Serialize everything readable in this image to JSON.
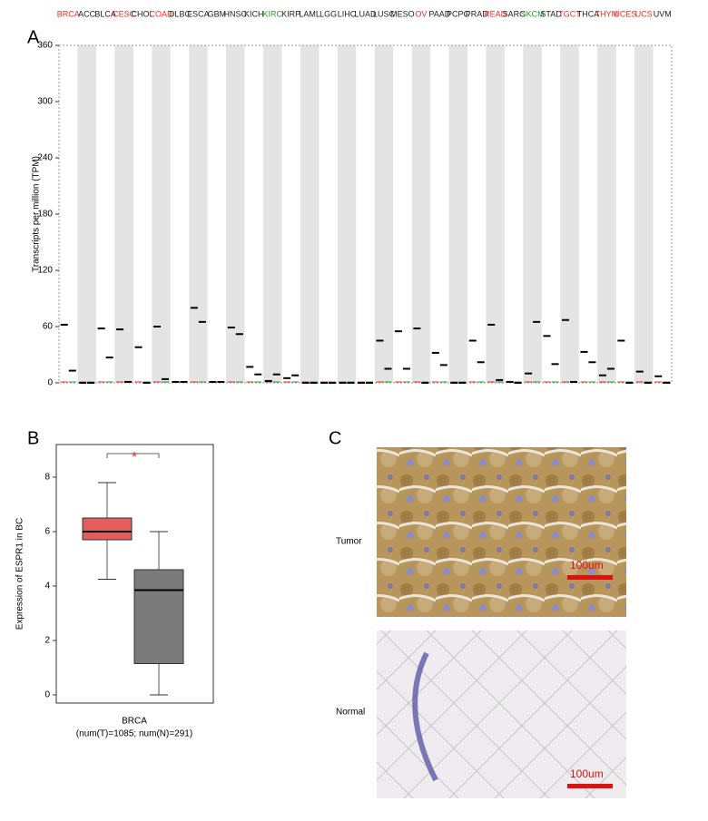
{
  "chart_data": [
    {
      "type": "dot",
      "ylabel": "Transcripts per million (TPM)",
      "categories": [
        "BRCA",
        "ACC",
        "BLCA",
        "CESC",
        "CHOL",
        "COAD",
        "DLBC",
        "ESCA",
        "GBM",
        "HNSC",
        "KICH",
        "KIRC",
        "KIRP",
        "LAML",
        "LGG",
        "LIHC",
        "LUAD",
        "LUSC",
        "MESO",
        "OV",
        "PAAD",
        "PCPG",
        "PRAD",
        "READ",
        "SARC",
        "SKCM",
        "STAD",
        "TGCT",
        "THCA",
        "THYM",
        "UCES",
        "UCS",
        "UVM"
      ],
      "category_colors": [
        "#e8302a",
        "#222222",
        "#222222",
        "#e8302a",
        "#222222",
        "#e8302a",
        "#222222",
        "#222222",
        "#222222",
        "#222222",
        "#222222",
        "#2a9a2a",
        "#222222",
        "#222222",
        "#222222",
        "#222222",
        "#222222",
        "#222222",
        "#222222",
        "#e8302a",
        "#222222",
        "#222222",
        "#222222",
        "#e8302a",
        "#222222",
        "#2a9a2a",
        "#222222",
        "#e8302a",
        "#222222",
        "#e8302a",
        "#e8302a",
        "#e8302a",
        "#222222"
      ],
      "series": [
        {
          "color": "#e8302a",
          "values": [
            62,
            0,
            58,
            57,
            38,
            60,
            1,
            80,
            1,
            59,
            17,
            2,
            5,
            0,
            0,
            0,
            0,
            45,
            55,
            58,
            32,
            0,
            45,
            62,
            1,
            10,
            50,
            67,
            33,
            8,
            45,
            12,
            7
          ]
        },
        {
          "color": "#2aa02a",
          "values": [
            13,
            0,
            27,
            1,
            0,
            4,
            1,
            65,
            1,
            52,
            9,
            9,
            8,
            0,
            0,
            0,
            0,
            15,
            15,
            0,
            19,
            0,
            22,
            3,
            0,
            65,
            20,
            1,
            22,
            15,
            0,
            0,
            0
          ]
        }
      ],
      "ylim": [
        0,
        360
      ],
      "yticks": [
        0,
        60,
        120,
        180,
        240,
        300,
        360
      ]
    },
    {
      "type": "box",
      "ylabel": "Expression of ESPR1 in BC",
      "xlabel": "BRCA",
      "subtitle": "(num(T)=1085; num(N)=291)",
      "annotation": "*",
      "boxes": [
        {
          "color": "#e35d5d",
          "whislo": 4.25,
          "q1": 5.7,
          "med": 6.0,
          "q3": 6.5,
          "whishi": 7.8
        },
        {
          "color": "#7b7b7b",
          "whislo": 0,
          "q1": 1.15,
          "med": 3.85,
          "q3": 4.6,
          "whishi": 6.0
        }
      ],
      "ylim": [
        -0.3,
        9.2
      ],
      "yticks": [
        0,
        2,
        4,
        6,
        8
      ]
    }
  ],
  "panel_labels": [
    "A",
    "B",
    "C"
  ],
  "images": {
    "tumor_label": "Tumor",
    "normal_label": "Normal",
    "scale_tumor": "100um",
    "scale_normal": "100um"
  }
}
